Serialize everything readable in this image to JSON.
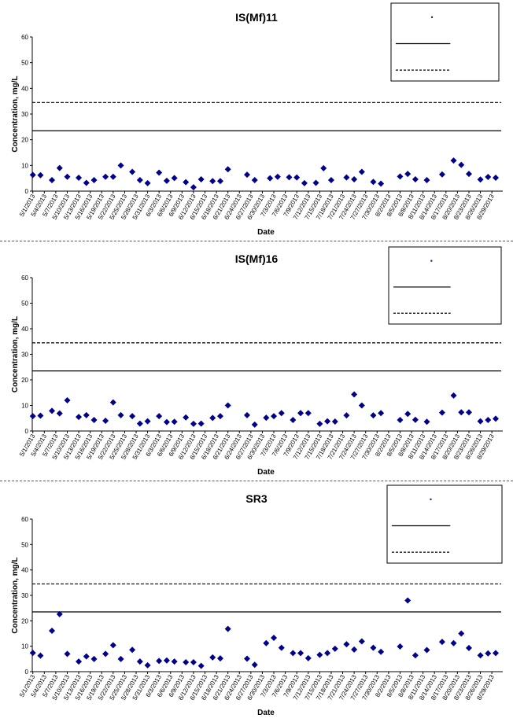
{
  "chart_data": [
    {
      "type": "scatter",
      "title": "IS(Mf)11",
      "xlabel": "Date",
      "ylabel": "Concentration, mg/L",
      "ylim": [
        0,
        60
      ],
      "yticks": [
        "0",
        "10",
        "20",
        "30",
        "40",
        "50",
        "60"
      ],
      "xticks": [
        "5/1/2013",
        "5/4/2013",
        "5/7/2013",
        "5/10/2013",
        "5/13/2013",
        "5/16/2013",
        "5/19/2013",
        "5/22/2013",
        "5/25/2013",
        "5/28/2013",
        "5/31/2013",
        "6/3/2013",
        "6/6/2013",
        "6/9/2013",
        "6/12/2013",
        "6/15/2013",
        "6/18/2013",
        "6/21/2013",
        "6/24/2013",
        "6/27/2013",
        "6/30/2013",
        "7/3/2013",
        "7/6/2013",
        "7/9/2013",
        "7/12/2013",
        "7/15/2013",
        "7/18/2013",
        "7/21/2013",
        "7/24/2013",
        "7/27/2013",
        "7/30/2013",
        "8/2/2013",
        "8/5/2013",
        "8/8/2013",
        "8/11/2013",
        "8/14/2013",
        "8/17/2013",
        "8/20/2013",
        "8/23/2013",
        "8/26/2013",
        "8/29/2013"
      ],
      "grid": false,
      "legend_position": "top-right",
      "reference_lines": [
        {
          "value": 23.5,
          "style": "solid"
        },
        {
          "value": 34.5,
          "style": "dashed"
        }
      ],
      "series": [
        {
          "color": "#00008b",
          "x": [
            "5/1/2013",
            "5/3/2013",
            "5/6/2013",
            "5/8/2013",
            "5/10/2013",
            "5/13/2013",
            "5/15/2013",
            "5/17/2013",
            "5/20/2013",
            "5/22/2013",
            "5/24/2013",
            "5/27/2013",
            "5/29/2013",
            "5/31/2013",
            "6/3/2013",
            "6/5/2013",
            "6/7/2013",
            "6/10/2013",
            "6/12/2013",
            "6/14/2013",
            "6/17/2013",
            "6/19/2013",
            "6/21/2013",
            "6/26/2013",
            "6/28/2013",
            "7/2/2013",
            "7/4/2013",
            "7/7/2013",
            "7/9/2013",
            "7/11/2013",
            "7/14/2013",
            "7/16/2013",
            "7/18/2013",
            "7/22/2013",
            "7/24/2013",
            "7/26/2013",
            "7/29/2013",
            "7/31/2013",
            "8/5/2013",
            "8/7/2013",
            "8/9/2013",
            "8/12/2013",
            "8/16/2013",
            "8/19/2013",
            "8/21/2013",
            "8/23/2013",
            "8/26/2013",
            "8/28/2013",
            "8/30/2013"
          ],
          "values": [
            6.3,
            6.2,
            4.3,
            9.0,
            5.6,
            5.2,
            3.2,
            4.3,
            5.6,
            5.6,
            10.0,
            7.5,
            4.3,
            3.1,
            7.2,
            4.0,
            5.1,
            3.5,
            1.5,
            4.6,
            3.9,
            3.9,
            8.5,
            6.4,
            4.3,
            5.0,
            5.6,
            5.4,
            5.3,
            3.1,
            3.2,
            8.9,
            4.3,
            5.3,
            4.6,
            7.5,
            3.6,
            2.9,
            5.7,
            6.7,
            4.6,
            4.3,
            6.5,
            11.9,
            10.2,
            6.7,
            4.5,
            5.5,
            5.2
          ]
        }
      ]
    },
    {
      "type": "scatter",
      "title": "IS(Mf)16",
      "xlabel": "Date",
      "ylabel": "Concentration, mg/L",
      "ylim": [
        0,
        60
      ],
      "yticks": [
        "0",
        "10",
        "20",
        "30",
        "40",
        "50",
        "60"
      ],
      "xticks": [
        "5/1/2013",
        "5/4/2013",
        "5/7/2013",
        "5/10/2013",
        "5/13/2013",
        "5/16/2013",
        "5/19/2013",
        "5/22/2013",
        "5/25/2013",
        "5/28/2013",
        "5/31/2013",
        "6/3/2013",
        "6/6/2013",
        "6/9/2013",
        "6/12/2013",
        "6/15/2013",
        "6/18/2013",
        "6/21/2013",
        "6/24/2013",
        "6/27/2013",
        "6/30/2013",
        "7/3/2013",
        "7/6/2013",
        "7/9/2013",
        "7/12/2013",
        "7/15/2013",
        "7/18/2013",
        "7/21/2013",
        "7/24/2013",
        "7/27/2013",
        "7/30/2013",
        "8/2/2013",
        "8/5/2013",
        "8/8/2013",
        "8/11/2013",
        "8/14/2013",
        "8/17/2013",
        "8/20/2013",
        "8/23/2013",
        "8/26/2013",
        "8/29/2013"
      ],
      "grid": false,
      "legend_position": "top-right",
      "reference_lines": [
        {
          "value": 23.5,
          "style": "solid"
        },
        {
          "value": 34.5,
          "style": "dashed"
        }
      ],
      "series": [
        {
          "color": "#00008b",
          "x": [
            "5/1/2013",
            "5/3/2013",
            "5/6/2013",
            "5/8/2013",
            "5/10/2013",
            "5/13/2013",
            "5/15/2013",
            "5/17/2013",
            "5/20/2013",
            "5/22/2013",
            "5/24/2013",
            "5/27/2013",
            "5/29/2013",
            "5/31/2013",
            "6/3/2013",
            "6/5/2013",
            "6/7/2013",
            "6/10/2013",
            "6/12/2013",
            "6/14/2013",
            "6/17/2013",
            "6/19/2013",
            "6/21/2013",
            "6/26/2013",
            "6/28/2013",
            "7/1/2013",
            "7/3/2013",
            "7/5/2013",
            "7/8/2013",
            "7/10/2013",
            "7/12/2013",
            "7/15/2013",
            "7/17/2013",
            "7/19/2013",
            "7/22/2013",
            "7/24/2013",
            "7/26/2013",
            "7/29/2013",
            "7/31/2013",
            "8/5/2013",
            "8/7/2013",
            "8/9/2013",
            "8/12/2013",
            "8/16/2013",
            "8/19/2013",
            "8/21/2013",
            "8/23/2013",
            "8/26/2013",
            "8/28/2013",
            "8/30/2013"
          ],
          "values": [
            5.8,
            6.0,
            7.9,
            6.9,
            12.0,
            5.5,
            6.2,
            4.3,
            4.0,
            11.2,
            6.2,
            5.8,
            2.9,
            3.8,
            5.8,
            3.5,
            3.6,
            5.3,
            2.8,
            2.9,
            5.1,
            5.8,
            10.0,
            6.2,
            2.5,
            5.2,
            5.8,
            7.0,
            4.3,
            7.0,
            7.0,
            2.8,
            3.8,
            3.7,
            6.1,
            14.3,
            10.0,
            6.1,
            7.0,
            4.3,
            6.7,
            4.4,
            3.6,
            7.2,
            13.9,
            7.3,
            7.3,
            3.8,
            4.3,
            4.8
          ]
        }
      ]
    },
    {
      "type": "scatter",
      "title": "SR3",
      "xlabel": "Date",
      "ylabel": "Concentration, mg/L",
      "ylim": [
        0,
        60
      ],
      "yticks": [
        "0",
        "10",
        "20",
        "30",
        "40",
        "50",
        "60"
      ],
      "xticks": [
        "5/1/2013",
        "5/4/2013",
        "5/7/2013",
        "5/10/2013",
        "5/13/2013",
        "5/16/2013",
        "5/19/2013",
        "5/22/2013",
        "5/25/2013",
        "5/28/2013",
        "5/31/2013",
        "6/3/2013",
        "6/6/2013",
        "6/9/2013",
        "6/12/2013",
        "6/15/2013",
        "6/18/2013",
        "6/21/2013",
        "6/24/2013",
        "6/27/2013",
        "6/30/2013",
        "7/3/2013",
        "7/6/2013",
        "7/9/2013",
        "7/12/2013",
        "7/15/2013",
        "7/18/2013",
        "7/21/2013",
        "7/24/2013",
        "7/27/2013",
        "7/30/2013",
        "8/2/2013",
        "8/5/2013",
        "8/8/2013",
        "8/11/2013",
        "8/14/2013",
        "8/17/2013",
        "8/20/2013",
        "8/23/2013",
        "8/26/2013",
        "8/29/2013"
      ],
      "grid": false,
      "legend_position": "top-right",
      "reference_lines": [
        {
          "value": 23.5,
          "style": "solid"
        },
        {
          "value": 34.5,
          "style": "dashed"
        }
      ],
      "series": [
        {
          "color": "#00008b",
          "x": [
            "5/1/2013",
            "5/3/2013",
            "5/6/2013",
            "5/8/2013",
            "5/10/2013",
            "5/13/2013",
            "5/15/2013",
            "5/17/2013",
            "5/20/2013",
            "5/22/2013",
            "5/24/2013",
            "5/27/2013",
            "5/29/2013",
            "5/31/2013",
            "6/3/2013",
            "6/5/2013",
            "6/7/2013",
            "6/10/2013",
            "6/12/2013",
            "6/14/2013",
            "6/17/2013",
            "6/19/2013",
            "6/21/2013",
            "6/26/2013",
            "6/28/2013",
            "7/1/2013",
            "7/3/2013",
            "7/5/2013",
            "7/8/2013",
            "7/10/2013",
            "7/12/2013",
            "7/15/2013",
            "7/17/2013",
            "7/19/2013",
            "7/22/2013",
            "7/24/2013",
            "7/26/2013",
            "7/29/2013",
            "7/31/2013",
            "8/5/2013",
            "8/7/2013",
            "8/9/2013",
            "8/12/2013",
            "8/16/2013",
            "8/19/2013",
            "8/21/2013",
            "8/23/2013",
            "8/26/2013",
            "8/28/2013",
            "8/30/2013"
          ],
          "values": [
            7.4,
            6.3,
            16.1,
            22.6,
            7.0,
            4.0,
            6.0,
            5.0,
            7.0,
            10.4,
            5.0,
            8.6,
            4.0,
            2.5,
            4.2,
            4.4,
            4.0,
            3.7,
            3.7,
            2.3,
            5.6,
            5.2,
            16.8,
            5.1,
            2.7,
            11.2,
            13.3,
            9.4,
            7.3,
            7.3,
            5.3,
            6.6,
            7.3,
            9.0,
            10.8,
            8.7,
            11.9,
            9.4,
            7.8,
            9.9,
            28.0,
            6.4,
            8.5,
            11.7,
            11.2,
            15.0,
            9.3,
            6.4,
            7.2,
            7.3
          ]
        }
      ]
    }
  ]
}
